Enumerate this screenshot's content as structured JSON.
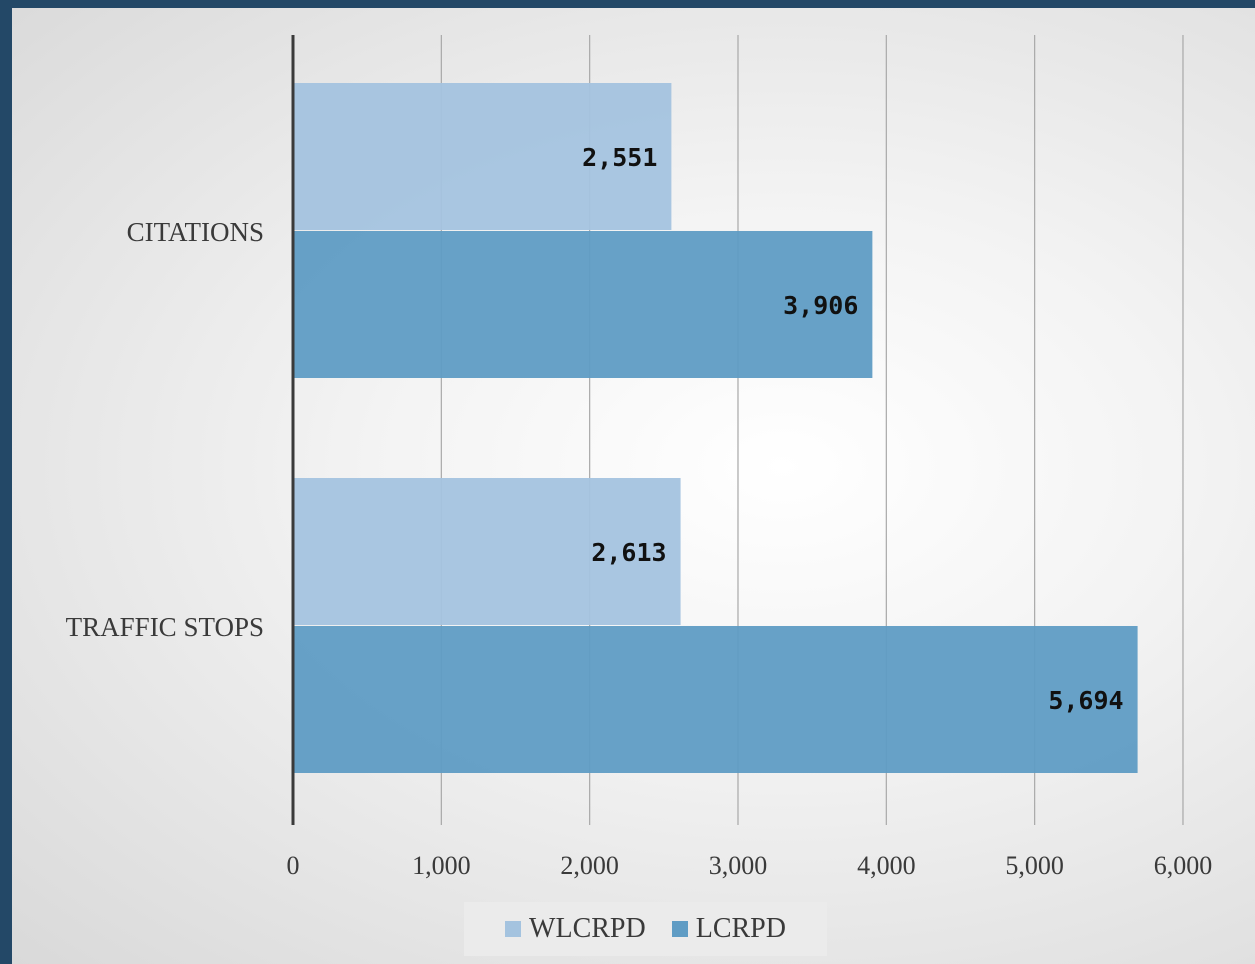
{
  "chart_data": {
    "type": "bar",
    "orientation": "horizontal",
    "categories": [
      "CITATIONS",
      "TRAFFIC STOPS"
    ],
    "series": [
      {
        "name": "WLCRPD",
        "values": [
          2551,
          2613
        ],
        "labels": [
          "2,551",
          "2,613"
        ],
        "color": "#a4c3df"
      },
      {
        "name": "LCRPD",
        "values": [
          3906,
          5694
        ],
        "labels": [
          "3,906",
          "5,694"
        ],
        "color": "#5f9cc4"
      }
    ],
    "xlim": [
      0,
      6000
    ],
    "ticks": [
      0,
      1000,
      2000,
      3000,
      4000,
      5000,
      6000
    ],
    "tick_labels": [
      "0",
      "1,000",
      "2,000",
      "3,000",
      "4,000",
      "5,000",
      "6,000"
    ],
    "grid": true,
    "legend_position": "bottom",
    "title": "",
    "xlabel": "",
    "ylabel": ""
  }
}
